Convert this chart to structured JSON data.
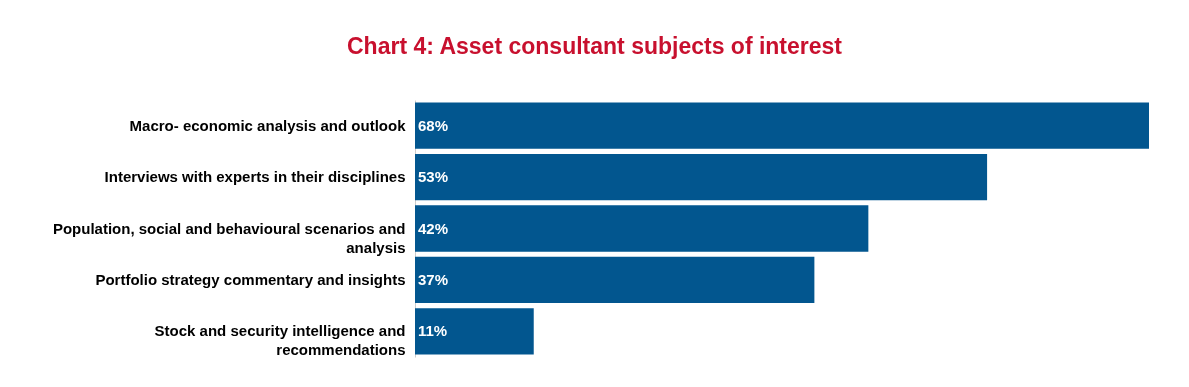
{
  "chart_data": {
    "type": "bar",
    "orientation": "horizontal",
    "title": "Chart 4: Asset consultant subjects of interest",
    "categories": [
      "Macro- economic analysis and outlook",
      "Interviews with experts in their disciplines",
      "Population, social and behavioural scenarios and analysis",
      "Portfolio strategy commentary and insights",
      "Stock and security intelligence and recommendations"
    ],
    "values": [
      68,
      53,
      42,
      37,
      11
    ],
    "value_labels": [
      "68%",
      "53%",
      "42%",
      "37%",
      "11%"
    ],
    "color": "#02568f",
    "tick_labels": "y"
  }
}
